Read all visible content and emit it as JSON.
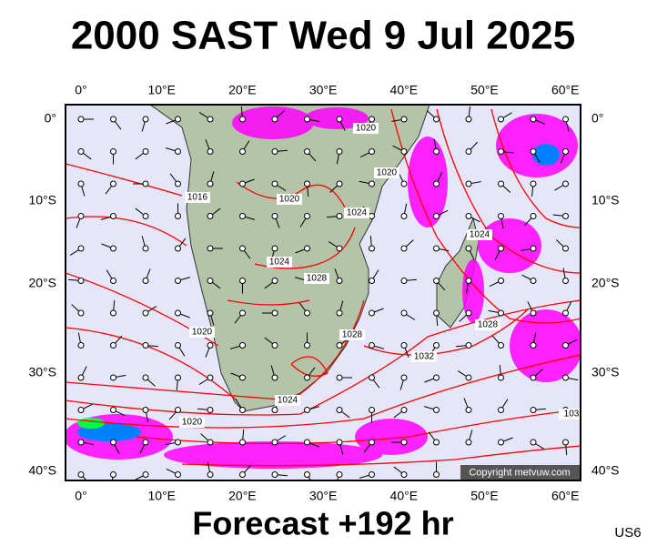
{
  "header": {
    "title": "2000 SAST Wed 9 Jul 2025"
  },
  "axes": {
    "longitudes": [
      "0°",
      "10°E",
      "20°E",
      "30°E",
      "40°E",
      "50°E",
      "60°E"
    ],
    "latitudes": [
      "0°",
      "10°S",
      "20°S",
      "30°S",
      "40°S"
    ]
  },
  "isobar_labels": [
    "1020",
    "1016",
    "1020",
    "1024",
    "1024",
    "1028",
    "1020",
    "1028",
    "1024",
    "1032",
    "1024",
    "1020",
    "1028",
    "103",
    "1020"
  ],
  "copyright": "Copyright metvuw.com",
  "footer": {
    "forecast": "Forecast +192 hr",
    "code": "US6"
  }
}
